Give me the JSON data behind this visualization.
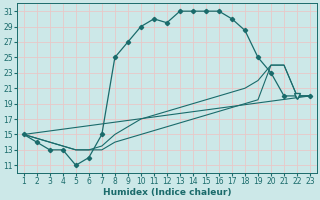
{
  "xlabel": "Humidex (Indice chaleur)",
  "bg_color": "#cce8e8",
  "grid_color": "#e8c8c8",
  "line_color": "#1a6b6b",
  "xlim_min": 0.5,
  "xlim_max": 23.5,
  "ylim_min": 10,
  "ylim_max": 32,
  "xticks": [
    1,
    2,
    3,
    4,
    5,
    6,
    7,
    8,
    9,
    10,
    11,
    12,
    13,
    14,
    15,
    16,
    17,
    18,
    19,
    20,
    21,
    22,
    23
  ],
  "yticks": [
    11,
    13,
    15,
    17,
    19,
    21,
    23,
    25,
    27,
    29,
    31
  ],
  "tick_fontsize": 5.5,
  "xlabel_fontsize": 6.5,
  "main_x": [
    1,
    2,
    3,
    4,
    5,
    6,
    7,
    8,
    9,
    10,
    11,
    12,
    13,
    14,
    15,
    16,
    17,
    18,
    19,
    20,
    21,
    22,
    23
  ],
  "main_y": [
    15,
    14,
    13,
    13,
    11,
    12,
    15,
    25,
    27,
    29,
    30,
    29.5,
    31,
    31,
    31,
    31,
    30,
    28.5,
    25,
    23,
    20,
    20,
    20
  ],
  "line2_x": [
    1,
    2,
    3,
    4,
    5,
    6,
    7,
    8,
    9,
    10,
    11,
    12,
    13,
    14,
    15,
    16,
    17,
    18,
    19,
    20,
    21,
    22,
    23
  ],
  "line2_y": [
    15,
    14.5,
    14,
    13.5,
    13,
    13,
    13.5,
    15,
    16,
    17,
    17.5,
    18,
    18.5,
    19,
    19.5,
    20,
    20.5,
    21,
    22,
    24,
    24,
    20,
    20
  ],
  "line3_x": [
    1,
    2,
    3,
    4,
    5,
    6,
    7,
    8,
    9,
    10,
    11,
    12,
    13,
    14,
    15,
    16,
    17,
    18,
    19,
    20,
    21,
    22,
    23
  ],
  "line3_y": [
    15,
    14.5,
    14,
    13.5,
    13,
    13,
    13,
    14,
    14.5,
    15,
    15.5,
    16,
    16.5,
    17,
    17.5,
    18,
    18.5,
    19,
    19.5,
    24,
    24,
    20,
    20
  ],
  "line4_x": [
    1,
    10,
    19,
    20,
    22,
    23
  ],
  "line4_y": [
    15,
    17,
    19,
    24,
    20,
    20
  ],
  "tri_x": 22,
  "tri_y": 20
}
